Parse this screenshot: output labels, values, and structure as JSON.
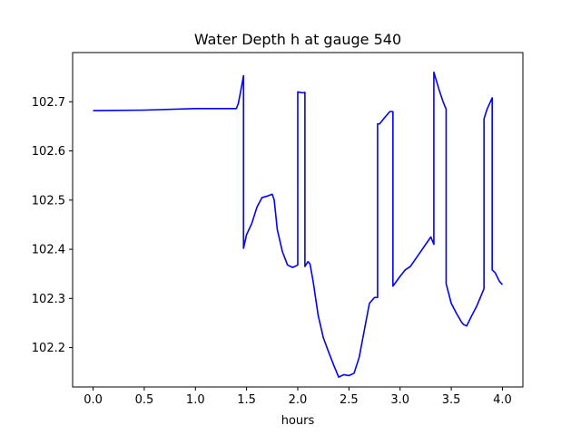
{
  "chart_data": {
    "type": "line",
    "title": "Water Depth h at gauge 540",
    "xlabel": "hours",
    "ylabel": "",
    "xlim": [
      -0.2,
      4.2
    ],
    "ylim": [
      102.12,
      102.8
    ],
    "xticks": [
      0.0,
      0.5,
      1.0,
      1.5,
      2.0,
      2.5,
      3.0,
      3.5,
      4.0
    ],
    "xtick_labels": [
      "0.0",
      "0.5",
      "1.0",
      "1.5",
      "2.0",
      "2.5",
      "3.0",
      "3.5",
      "4.0"
    ],
    "yticks": [
      102.2,
      102.3,
      102.4,
      102.5,
      102.6,
      102.7
    ],
    "ytick_labels": [
      "102.2",
      "102.3",
      "102.4",
      "102.5",
      "102.6",
      "102.7"
    ],
    "grid": false,
    "legend": "none",
    "series": [
      {
        "color": "#0000ff",
        "x": [
          0.0,
          0.5,
          1.0,
          1.4,
          1.42,
          1.45,
          1.47,
          1.47,
          1.5,
          1.55,
          1.6,
          1.65,
          1.7,
          1.75,
          1.77,
          1.8,
          1.85,
          1.9,
          1.95,
          2.0,
          2.0,
          2.05,
          2.07,
          2.07,
          2.1,
          2.12,
          2.15,
          2.2,
          2.25,
          2.3,
          2.35,
          2.4,
          2.45,
          2.5,
          2.55,
          2.6,
          2.65,
          2.7,
          2.75,
          2.78,
          2.78,
          2.8,
          2.85,
          2.9,
          2.93,
          2.93,
          3.0,
          3.05,
          3.1,
          3.15,
          3.2,
          3.25,
          3.3,
          3.33,
          3.33,
          3.38,
          3.42,
          3.45,
          3.45,
          3.5,
          3.55,
          3.6,
          3.62,
          3.65,
          3.7,
          3.75,
          3.8,
          3.82,
          3.82,
          3.85,
          3.9,
          3.9,
          3.93,
          3.97,
          4.0
        ],
        "y": [
          102.682,
          102.683,
          102.686,
          102.686,
          102.697,
          102.73,
          102.753,
          102.402,
          102.43,
          102.452,
          102.485,
          102.505,
          102.508,
          102.512,
          102.5,
          102.44,
          102.395,
          102.368,
          102.363,
          102.368,
          102.72,
          102.718,
          102.719,
          102.365,
          102.375,
          102.37,
          102.335,
          102.265,
          102.22,
          102.192,
          102.165,
          102.14,
          102.145,
          102.143,
          102.148,
          102.18,
          102.235,
          102.29,
          102.302,
          102.302,
          102.655,
          102.655,
          102.668,
          102.68,
          102.68,
          102.325,
          102.345,
          102.358,
          102.365,
          102.38,
          102.395,
          102.41,
          102.425,
          102.41,
          102.76,
          102.725,
          102.7,
          102.685,
          102.33,
          102.29,
          102.27,
          102.252,
          102.247,
          102.244,
          102.265,
          102.285,
          102.31,
          102.32,
          102.665,
          102.685,
          102.708,
          102.358,
          102.352,
          102.335,
          102.328
        ]
      }
    ]
  }
}
